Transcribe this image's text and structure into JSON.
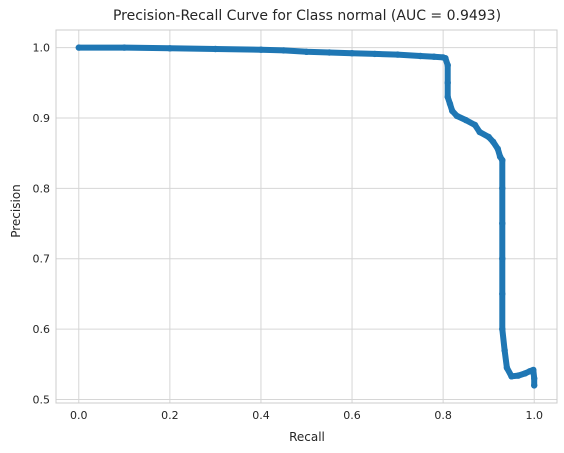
{
  "chart_data": {
    "type": "line",
    "title": "Precision-Recall Curve for Class normal (AUC = 0.9493)",
    "xlabel": "Recall",
    "ylabel": "Precision",
    "xlim": [
      -0.05,
      1.05
    ],
    "ylim": [
      0.495,
      1.025
    ],
    "grid": true,
    "x_ticks": [
      "0.0",
      "0.2",
      "0.4",
      "0.6",
      "0.8",
      "1.0"
    ],
    "y_ticks": [
      "0.5",
      "0.6",
      "0.7",
      "0.8",
      "0.9",
      "1.0"
    ],
    "series_color": "#1f77b4",
    "series": [
      {
        "points": [
          [
            0.0,
            1.0
          ],
          [
            0.1,
            1.0
          ],
          [
            0.2,
            0.999
          ],
          [
            0.3,
            0.998
          ],
          [
            0.4,
            0.997
          ],
          [
            0.45,
            0.996
          ],
          [
            0.5,
            0.994
          ],
          [
            0.55,
            0.993
          ],
          [
            0.6,
            0.992
          ],
          [
            0.65,
            0.991
          ],
          [
            0.7,
            0.99
          ],
          [
            0.75,
            0.988
          ],
          [
            0.78,
            0.987
          ],
          [
            0.8,
            0.986
          ],
          [
            0.805,
            0.985
          ],
          [
            0.81,
            0.975
          ],
          [
            0.81,
            0.95
          ],
          [
            0.81,
            0.93
          ],
          [
            0.815,
            0.92
          ],
          [
            0.82,
            0.91
          ],
          [
            0.83,
            0.903
          ],
          [
            0.85,
            0.897
          ],
          [
            0.87,
            0.89
          ],
          [
            0.88,
            0.88
          ],
          [
            0.9,
            0.873
          ],
          [
            0.91,
            0.866
          ],
          [
            0.92,
            0.856
          ],
          [
            0.925,
            0.845
          ],
          [
            0.93,
            0.84
          ],
          [
            0.93,
            0.8
          ],
          [
            0.93,
            0.75
          ],
          [
            0.93,
            0.7
          ],
          [
            0.93,
            0.65
          ],
          [
            0.93,
            0.6
          ],
          [
            0.935,
            0.57
          ],
          [
            0.94,
            0.545
          ],
          [
            0.95,
            0.533
          ],
          [
            0.965,
            0.534
          ],
          [
            0.98,
            0.537
          ],
          [
            0.99,
            0.54
          ],
          [
            0.998,
            0.542
          ],
          [
            1.0,
            0.53
          ],
          [
            1.0,
            0.52
          ]
        ]
      }
    ]
  }
}
